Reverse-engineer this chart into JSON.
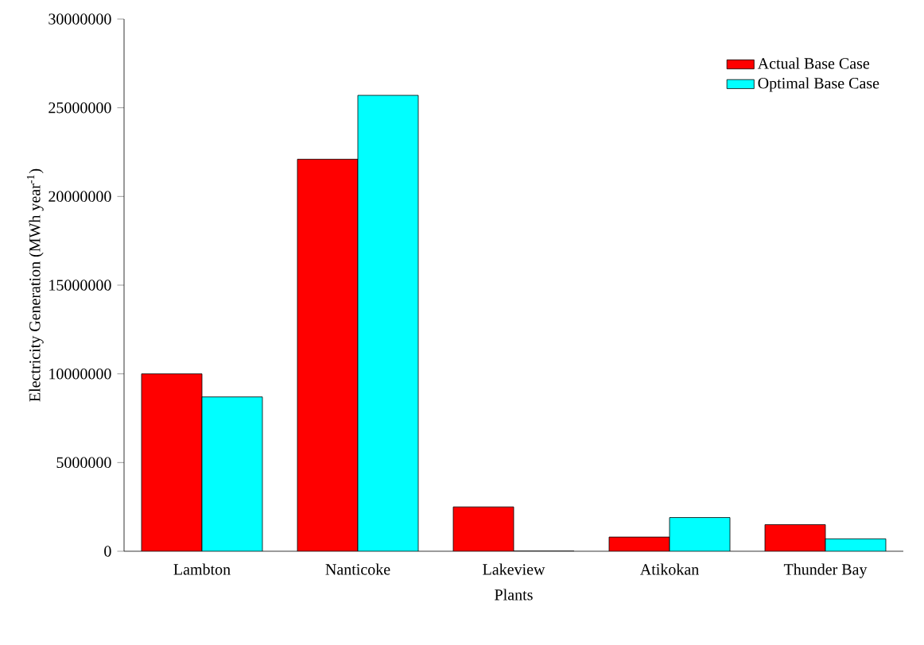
{
  "chart_data": {
    "type": "bar",
    "xlabel": "Plants",
    "ylabel": "Electricity Generation (MWh year$^{-1}$)",
    "categories": [
      "Lambton",
      "Nanticoke",
      "Lakeview",
      "Atikokan",
      "Thunder Bay"
    ],
    "series": [
      {
        "name": "Actual Base Case",
        "color": "#ff0000",
        "values": [
          10000000,
          22100000,
          2500000,
          800000,
          1500000
        ]
      },
      {
        "name": "Optimal Base Case",
        "color": "#00ffff",
        "values": [
          8700000,
          25700000,
          0,
          1900000,
          700000
        ]
      }
    ],
    "ylim": [
      0,
      30000000
    ],
    "yticks": [
      0,
      5000000,
      10000000,
      15000000,
      20000000,
      25000000,
      30000000
    ],
    "grid": false,
    "legend": "top right"
  }
}
